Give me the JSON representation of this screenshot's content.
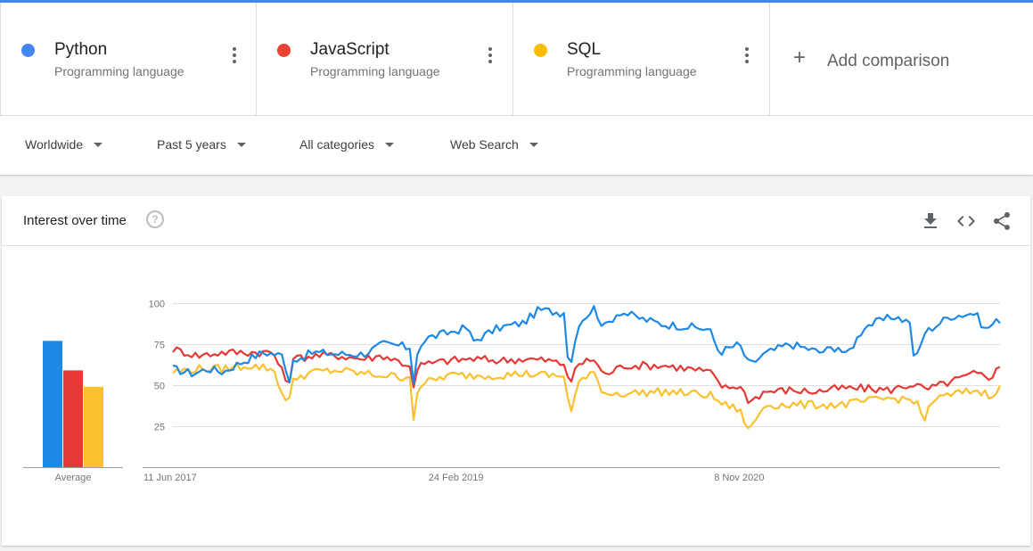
{
  "terms": [
    {
      "name": "Python",
      "type": "Programming language",
      "color": "#4285f4"
    },
    {
      "name": "JavaScript",
      "type": "Programming language",
      "color": "#ea4335"
    },
    {
      "name": "SQL",
      "type": "Programming language",
      "color": "#fbbc04"
    }
  ],
  "add_comparison": "Add comparison",
  "filters": {
    "region": "Worldwide",
    "time": "Past 5 years",
    "category": "All categories",
    "search_type": "Web Search"
  },
  "card": {
    "title": "Interest over time",
    "help_icon": "help-circle-icon",
    "tools": [
      "download-icon",
      "embed-code-icon",
      "share-icon"
    ]
  },
  "chart_data": {
    "type": "line",
    "colors": [
      "#1e88e5",
      "#e53935",
      "#fbc02d"
    ],
    "y_ticks": [
      25,
      50,
      75,
      100
    ],
    "ylim": [
      0,
      100
    ],
    "grid": true,
    "x_labels": [
      {
        "label": "11 Jun 2017",
        "week": 0
      },
      {
        "label": "24 Feb 2019",
        "week": 89
      },
      {
        "label": "8 Nov 2020",
        "week": 178
      }
    ],
    "average_label": "Average",
    "averages": [
      77,
      59,
      49
    ],
    "total_weeks": 260,
    "series": [
      {
        "name": "Python",
        "keypoints": [
          [
            0,
            60
          ],
          [
            8,
            57
          ],
          [
            14,
            60
          ],
          [
            20,
            58
          ],
          [
            26,
            63
          ],
          [
            36,
            70
          ],
          [
            44,
            68
          ],
          [
            46,
            50
          ],
          [
            48,
            65
          ],
          [
            56,
            70
          ],
          [
            66,
            69
          ],
          [
            76,
            69
          ],
          [
            84,
            75
          ],
          [
            91,
            74
          ],
          [
            95,
            72
          ],
          [
            96,
            52
          ],
          [
            98,
            74
          ],
          [
            102,
            79
          ],
          [
            110,
            82
          ],
          [
            117,
            85
          ],
          [
            120,
            77
          ],
          [
            130,
            85
          ],
          [
            140,
            88
          ],
          [
            146,
            96
          ],
          [
            156,
            94
          ],
          [
            158,
            58
          ],
          [
            162,
            88
          ],
          [
            168,
            97
          ],
          [
            172,
            85
          ],
          [
            178,
            95
          ],
          [
            188,
            90
          ],
          [
            196,
            87
          ],
          [
            204,
            86
          ],
          [
            214,
            84
          ],
          [
            218,
            70
          ],
          [
            226,
            75
          ],
          [
            230,
            62
          ],
          [
            236,
            69
          ],
          [
            246,
            75
          ],
          [
            254,
            72
          ],
          [
            258,
            70
          ],
          [
            266,
            74
          ],
          [
            268,
            67
          ],
          [
            272,
            76
          ],
          [
            276,
            86
          ],
          [
            284,
            90
          ],
          [
            288,
            92
          ],
          [
            294,
            88
          ],
          [
            296,
            63
          ],
          [
            300,
            82
          ],
          [
            310,
            92
          ],
          [
            320,
            94
          ],
          [
            324,
            84
          ],
          [
            330,
            90
          ]
        ]
      },
      {
        "name": "JavaScript",
        "keypoints": [
          [
            0,
            72
          ],
          [
            10,
            68
          ],
          [
            20,
            70
          ],
          [
            30,
            70
          ],
          [
            40,
            70
          ],
          [
            46,
            50
          ],
          [
            48,
            66
          ],
          [
            56,
            68
          ],
          [
            66,
            68
          ],
          [
            76,
            66
          ],
          [
            84,
            68
          ],
          [
            91,
            64
          ],
          [
            95,
            61
          ],
          [
            96,
            50
          ],
          [
            98,
            62
          ],
          [
            110,
            65
          ],
          [
            120,
            66
          ],
          [
            130,
            65
          ],
          [
            140,
            66
          ],
          [
            150,
            65
          ],
          [
            157,
            62
          ],
          [
            158,
            50
          ],
          [
            162,
            63
          ],
          [
            168,
            66
          ],
          [
            172,
            56
          ],
          [
            180,
            62
          ],
          [
            196,
            62
          ],
          [
            206,
            60
          ],
          [
            214,
            58
          ],
          [
            220,
            48
          ],
          [
            226,
            50
          ],
          [
            230,
            40
          ],
          [
            236,
            46
          ],
          [
            246,
            47
          ],
          [
            256,
            46
          ],
          [
            266,
            48
          ],
          [
            276,
            48
          ],
          [
            286,
            47
          ],
          [
            296,
            51
          ],
          [
            300,
            47
          ],
          [
            310,
            52
          ],
          [
            320,
            57
          ],
          [
            326,
            55
          ],
          [
            330,
            61
          ]
        ]
      },
      {
        "name": "SQL",
        "keypoints": [
          [
            0,
            58
          ],
          [
            10,
            60
          ],
          [
            20,
            60
          ],
          [
            30,
            62
          ],
          [
            40,
            60
          ],
          [
            46,
            36
          ],
          [
            48,
            54
          ],
          [
            56,
            58
          ],
          [
            66,
            59
          ],
          [
            76,
            57
          ],
          [
            84,
            56
          ],
          [
            91,
            55
          ],
          [
            95,
            55
          ],
          [
            96,
            30
          ],
          [
            98,
            50
          ],
          [
            110,
            56
          ],
          [
            120,
            56
          ],
          [
            130,
            56
          ],
          [
            140,
            57
          ],
          [
            150,
            56
          ],
          [
            157,
            55
          ],
          [
            158,
            30
          ],
          [
            162,
            52
          ],
          [
            168,
            57
          ],
          [
            172,
            45
          ],
          [
            180,
            45
          ],
          [
            196,
            46
          ],
          [
            206,
            45
          ],
          [
            214,
            44
          ],
          [
            220,
            38
          ],
          [
            226,
            35
          ],
          [
            230,
            22
          ],
          [
            236,
            38
          ],
          [
            246,
            38
          ],
          [
            256,
            38
          ],
          [
            266,
            38
          ],
          [
            276,
            40
          ],
          [
            286,
            42
          ],
          [
            296,
            41
          ],
          [
            300,
            28
          ],
          [
            302,
            40
          ],
          [
            310,
            44
          ],
          [
            320,
            47
          ],
          [
            326,
            44
          ],
          [
            330,
            48
          ]
        ]
      }
    ]
  }
}
